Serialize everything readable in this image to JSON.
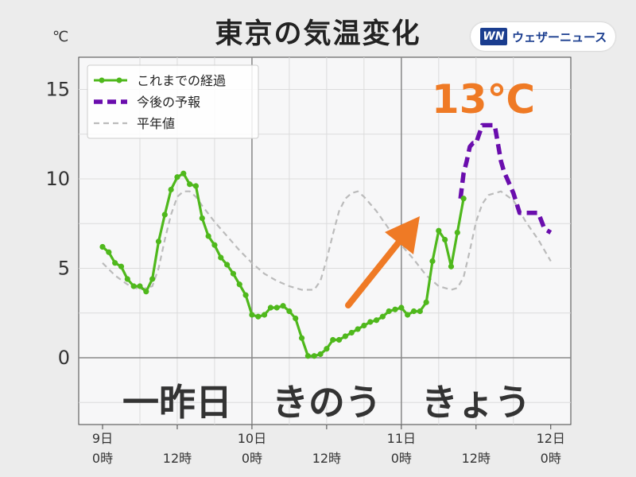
{
  "title": "東京の気温変化",
  "logo": {
    "mark": "WN",
    "text": "ウェザーニュース",
    "icon": "weathernews-logo"
  },
  "unit_label": "℃",
  "peak_label": "13℃",
  "colors": {
    "observed": "#4fb81c",
    "forecast": "#6a0dad",
    "normal": "#bbbbbb",
    "peak_text": "#ef7a25",
    "arrow": "#ef7a25",
    "plot_bg": "#f7f7f8",
    "grid": "#dcdcdc",
    "page_bg": "#ececec"
  },
  "chart_data": {
    "type": "line",
    "xlabel": "",
    "ylabel": "℃",
    "xlim": [
      0,
      72
    ],
    "ylim": [
      -3.8,
      16.8
    ],
    "grid": true,
    "legend_position": "top-left",
    "y_ticks": [
      0,
      5,
      10,
      15
    ],
    "x_ticks": [
      {
        "x": 0,
        "label": [
          "9日",
          "0時"
        ]
      },
      {
        "x": 12,
        "label": [
          "12時"
        ]
      },
      {
        "x": 24,
        "label": [
          "10日",
          "0時"
        ]
      },
      {
        "x": 36,
        "label": [
          "12時"
        ]
      },
      {
        "x": 48,
        "label": [
          "11日",
          "0時"
        ]
      },
      {
        "x": 60,
        "label": [
          "12時"
        ]
      },
      {
        "x": 72,
        "label": [
          "12日",
          "0時"
        ]
      }
    ],
    "day_labels": [
      {
        "x": 12,
        "text": "一昨日"
      },
      {
        "x": 36,
        "text": "きのう"
      },
      {
        "x": 60,
        "text": "きょう"
      }
    ],
    "series": [
      {
        "name": "これまでの経過",
        "style": "solid-marker",
        "x": [
          0,
          1,
          2,
          3,
          4,
          5,
          6,
          7,
          8,
          9,
          10,
          11,
          12,
          13,
          14,
          15,
          16,
          17,
          18,
          19,
          20,
          21,
          22,
          23,
          24,
          25,
          26,
          27,
          28,
          29,
          30,
          31,
          32,
          33,
          34,
          35,
          36,
          37,
          38,
          39,
          40,
          41,
          42,
          43,
          44,
          45,
          46,
          47,
          48,
          49,
          50,
          51,
          52,
          53,
          54,
          55,
          56,
          57,
          58
        ],
        "y": [
          6.2,
          5.9,
          5.3,
          5.1,
          4.4,
          4.0,
          4.0,
          3.7,
          4.4,
          6.5,
          8.0,
          9.4,
          10.1,
          10.3,
          9.7,
          9.6,
          7.8,
          6.8,
          6.3,
          5.6,
          5.2,
          4.7,
          4.1,
          3.5,
          2.4,
          2.3,
          2.4,
          2.8,
          2.8,
          2.9,
          2.6,
          2.2,
          1.1,
          0.1,
          0.1,
          0.2,
          0.5,
          1.0,
          1.0,
          1.2,
          1.4,
          1.6,
          1.8,
          2.0,
          2.1,
          2.3,
          2.6,
          2.7,
          2.8,
          2.4,
          2.6,
          2.6,
          3.1,
          5.4,
          7.1,
          6.6,
          5.1,
          7.0,
          8.9
        ]
      },
      {
        "name": "今後の予報",
        "style": "dashed-thick",
        "x": [
          57.5,
          58,
          58.5,
          59,
          59.5,
          60,
          61,
          62,
          63,
          64,
          64.5,
          65,
          66,
          67,
          68,
          69,
          70,
          71,
          72
        ],
        "y": [
          8.9,
          10.3,
          11.0,
          11.8,
          12.0,
          12.0,
          13.0,
          13.0,
          13.0,
          11.0,
          10.4,
          10.0,
          9.2,
          8.1,
          8.1,
          8.1,
          8.1,
          7.2,
          7.0
        ]
      },
      {
        "name": "平年値",
        "style": "dashed-thin",
        "x": [
          0,
          2,
          4,
          6,
          8,
          9,
          10,
          11,
          12,
          13,
          14,
          15,
          16,
          18,
          20,
          22,
          24,
          26,
          28,
          30,
          32,
          34,
          35,
          36,
          37,
          38,
          39,
          40,
          41,
          42,
          44,
          46,
          48,
          50,
          52,
          54,
          56,
          57,
          58,
          59,
          60,
          61,
          62,
          63,
          64,
          66,
          68,
          70,
          72
        ],
        "y": [
          5.3,
          4.6,
          4.1,
          3.8,
          4.0,
          5.0,
          6.6,
          8.0,
          9.0,
          9.3,
          9.3,
          9.0,
          8.5,
          7.6,
          6.8,
          6.0,
          5.3,
          4.7,
          4.3,
          4.0,
          3.8,
          3.8,
          4.3,
          5.5,
          6.9,
          8.2,
          8.9,
          9.2,
          9.3,
          9.0,
          8.2,
          7.2,
          6.3,
          5.5,
          4.6,
          4.0,
          3.8,
          3.9,
          4.5,
          6.0,
          7.6,
          8.6,
          9.1,
          9.2,
          9.3,
          8.8,
          7.6,
          6.6,
          5.4
        ]
      }
    ]
  }
}
